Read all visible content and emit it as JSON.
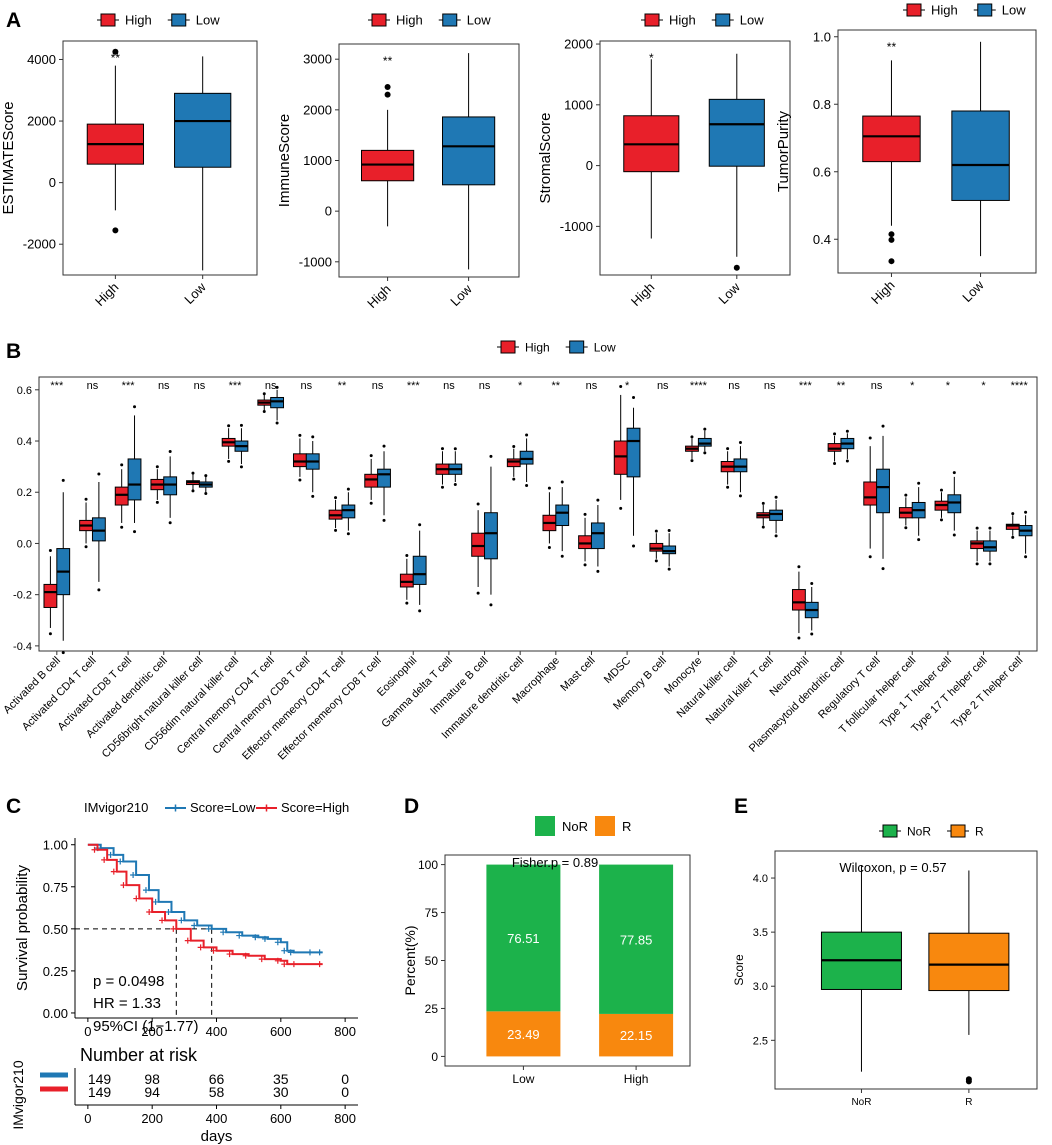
{
  "figure": {
    "panel_labels": [
      "A",
      "B",
      "C",
      "D",
      "E"
    ]
  },
  "colors": {
    "high": "#e8202a",
    "low": "#1f78b4",
    "nor": "#1cb24b",
    "r": "#f8880e",
    "line": "#000000"
  },
  "chart_data": [
    {
      "type": "box",
      "panel": "A1",
      "ylabel": "ESTIMATEScore",
      "legend": [
        "High",
        "Low"
      ],
      "categories": [
        "High",
        "Low"
      ],
      "significance": "**",
      "yticks": [
        -2000,
        0,
        2000,
        4000
      ],
      "ytick_labels": [
        "-2000",
        "0",
        "2000",
        "4000"
      ],
      "ylim": [
        -3000,
        4600
      ],
      "boxes": [
        {
          "name": "High",
          "whisker_low": -900,
          "q1": 600,
          "median": 1250,
          "q3": 1900,
          "whisker_high": 3800,
          "outliers": [
            4250,
            -1550
          ]
        },
        {
          "name": "Low",
          "whisker_low": -2850,
          "q1": 500,
          "median": 2000,
          "q3": 2900,
          "whisker_high": 4100,
          "outliers": []
        }
      ]
    },
    {
      "type": "box",
      "panel": "A2",
      "ylabel": "ImmuneScore",
      "legend": [
        "High",
        "Low"
      ],
      "categories": [
        "High",
        "Low"
      ],
      "significance": "**",
      "yticks": [
        -1000,
        0,
        1000,
        2000,
        3000
      ],
      "ytick_labels": [
        "-1000",
        "0",
        "1000",
        "2000",
        "3000"
      ],
      "ylim": [
        -1300,
        3300
      ],
      "boxes": [
        {
          "name": "High",
          "whisker_low": -300,
          "q1": 600,
          "median": 920,
          "q3": 1200,
          "whisker_high": 2000,
          "outliers": [
            2300,
            2450
          ]
        },
        {
          "name": "Low",
          "whisker_low": -1150,
          "q1": 520,
          "median": 1280,
          "q3": 1860,
          "whisker_high": 3120,
          "outliers": []
        }
      ]
    },
    {
      "type": "box",
      "panel": "A3",
      "ylabel": "StromalScore",
      "legend": [
        "High",
        "Low"
      ],
      "categories": [
        "High",
        "Low"
      ],
      "significance": "*",
      "yticks": [
        -1000,
        0,
        1000,
        2000
      ],
      "ytick_labels": [
        "-1000",
        "0",
        "1000",
        "2000"
      ],
      "ylim": [
        -1800,
        2050
      ],
      "boxes": [
        {
          "name": "High",
          "whisker_low": -1200,
          "q1": -100,
          "median": 350,
          "q3": 820,
          "whisker_high": 1750,
          "outliers": []
        },
        {
          "name": "Low",
          "whisker_low": -1500,
          "q1": -10,
          "median": 680,
          "q3": 1090,
          "whisker_high": 1840,
          "outliers": [
            -1680
          ]
        }
      ]
    },
    {
      "type": "box",
      "panel": "A4",
      "ylabel": "TumorPurity",
      "legend": [
        "High",
        "Low"
      ],
      "categories": [
        "High",
        "Low"
      ],
      "significance": "**",
      "yticks": [
        0.4,
        0.6,
        0.8,
        1.0
      ],
      "ytick_labels": [
        "0.4",
        "0.6",
        "0.8",
        "1.0"
      ],
      "ylim": [
        0.3,
        1.02
      ],
      "boxes": [
        {
          "name": "High",
          "whisker_low": 0.44,
          "q1": 0.63,
          "median": 0.705,
          "q3": 0.765,
          "whisker_high": 0.93,
          "outliers": [
            0.415,
            0.398,
            0.335
          ]
        },
        {
          "name": "Low",
          "whisker_low": 0.35,
          "q1": 0.515,
          "median": 0.62,
          "q3": 0.78,
          "whisker_high": 0.985,
          "outliers": []
        }
      ]
    },
    {
      "type": "box",
      "panel": "B",
      "legend": [
        "High",
        "Low"
      ],
      "yticks": [
        -0.4,
        -0.2,
        0.0,
        0.2,
        0.4,
        0.6
      ],
      "ytick_labels": [
        "-0.4",
        "-0.2",
        "0.0",
        "0.2",
        "0.4",
        "0.6"
      ],
      "ylim": [
        -0.42,
        0.65
      ],
      "categories": [
        "Activated B cell",
        "Activated CD4 T cell",
        "Activated CD8 T cell",
        "Activated dendritic cell",
        "CD56bright natural killer cell",
        "CD56dim natural killer cell",
        "Central memory CD4 T cell",
        "Central memory CD8 T cell",
        "Effector memeory CD4 T cell",
        "Effector memeory CD8 T cell",
        "Eosinophil",
        "Gamma delta T cell",
        "Immature  B cell",
        "Immature dendritic cell",
        "Macrophage",
        "Mast cell",
        "MDSC",
        "Memory B cell",
        "Monocyte",
        "Natural killer cell",
        "Natural killer T cell",
        "Neutrophil",
        "Plasmacytoid dendritic cell",
        "Regulatory T cell",
        "T follicular helper cell",
        "Type 1 T helper cell",
        "Type 17 T helper cell",
        "Type 2 T helper cell"
      ],
      "significance": [
        "***",
        "ns",
        "***",
        "ns",
        "ns",
        "***",
        "ns",
        "ns",
        "**",
        "ns",
        "***",
        "ns",
        "ns",
        "*",
        "**",
        "ns",
        "*",
        "ns",
        "****",
        "ns",
        "ns",
        "***",
        "**",
        "ns",
        "*",
        "*",
        "*",
        "****"
      ],
      "high": [
        [
          -0.33,
          -0.25,
          -0.19,
          -0.16,
          -0.05
        ],
        [
          0.0,
          0.05,
          0.07,
          0.09,
          0.16
        ],
        [
          0.08,
          0.15,
          0.19,
          0.22,
          0.29
        ],
        [
          0.17,
          0.21,
          0.23,
          0.25,
          0.29
        ],
        [
          0.21,
          0.23,
          0.24,
          0.245,
          0.27
        ],
        [
          0.33,
          0.38,
          0.395,
          0.41,
          0.45
        ],
        [
          0.52,
          0.54,
          0.55,
          0.56,
          0.58
        ],
        [
          0.26,
          0.3,
          0.32,
          0.35,
          0.41
        ],
        [
          0.06,
          0.095,
          0.11,
          0.13,
          0.17
        ],
        [
          0.17,
          0.22,
          0.25,
          0.27,
          0.33
        ],
        [
          -0.22,
          -0.17,
          -0.15,
          -0.12,
          -0.06
        ],
        [
          0.23,
          0.27,
          0.29,
          0.31,
          0.36
        ],
        [
          -0.17,
          -0.05,
          -0.01,
          0.04,
          0.13
        ],
        [
          0.26,
          0.3,
          0.32,
          0.33,
          0.37
        ],
        [
          0.0,
          0.05,
          0.08,
          0.11,
          0.2
        ],
        [
          -0.07,
          -0.02,
          0.0,
          0.03,
          0.1
        ],
        [
          0.17,
          0.27,
          0.34,
          0.4,
          0.58
        ],
        [
          -0.06,
          -0.03,
          -0.02,
          0.0,
          0.04
        ],
        [
          0.33,
          0.36,
          0.37,
          0.38,
          0.41
        ],
        [
          0.23,
          0.28,
          0.3,
          0.32,
          0.36
        ],
        [
          0.07,
          0.1,
          0.11,
          0.12,
          0.15
        ],
        [
          -0.35,
          -0.26,
          -0.23,
          -0.18,
          -0.11
        ],
        [
          0.32,
          0.36,
          0.37,
          0.39,
          0.42
        ],
        [
          -0.02,
          0.15,
          0.18,
          0.24,
          0.38
        ],
        [
          0.07,
          0.1,
          0.12,
          0.14,
          0.18
        ],
        [
          0.1,
          0.13,
          0.15,
          0.165,
          0.2
        ],
        [
          -0.07,
          -0.02,
          0.0,
          0.01,
          0.05
        ],
        [
          0.03,
          0.055,
          0.07,
          0.075,
          0.11
        ]
      ],
      "low": [
        [
          -0.38,
          -0.2,
          -0.11,
          -0.02,
          0.2
        ],
        [
          -0.15,
          0.01,
          0.05,
          0.1,
          0.24
        ],
        [
          0.08,
          0.17,
          0.23,
          0.33,
          0.5
        ],
        [
          0.1,
          0.19,
          0.23,
          0.26,
          0.34
        ],
        [
          0.2,
          0.22,
          0.23,
          0.24,
          0.26
        ],
        [
          0.31,
          0.36,
          0.38,
          0.4,
          0.45
        ],
        [
          0.48,
          0.53,
          0.555,
          0.57,
          0.6
        ],
        [
          0.2,
          0.29,
          0.32,
          0.35,
          0.4
        ],
        [
          0.05,
          0.1,
          0.13,
          0.15,
          0.2
        ],
        [
          0.11,
          0.22,
          0.27,
          0.29,
          0.36
        ],
        [
          -0.24,
          -0.16,
          -0.12,
          -0.05,
          0.05
        ],
        [
          0.24,
          0.27,
          0.29,
          0.31,
          0.36
        ],
        [
          -0.2,
          -0.06,
          0.04,
          0.12,
          0.3
        ],
        [
          0.24,
          0.31,
          0.33,
          0.36,
          0.41
        ],
        [
          -0.03,
          0.07,
          0.12,
          0.15,
          0.22
        ],
        [
          -0.09,
          -0.02,
          0.04,
          0.08,
          0.15
        ],
        [
          0.03,
          0.26,
          0.4,
          0.45,
          0.53
        ],
        [
          -0.09,
          -0.04,
          -0.03,
          -0.01,
          0.04
        ],
        [
          0.36,
          0.38,
          0.39,
          0.41,
          0.44
        ],
        [
          0.2,
          0.28,
          0.3,
          0.33,
          0.38
        ],
        [
          0.04,
          0.09,
          0.115,
          0.13,
          0.17
        ],
        [
          -0.34,
          -0.29,
          -0.26,
          -0.23,
          -0.17
        ],
        [
          0.33,
          0.37,
          0.39,
          0.41,
          0.43
        ],
        [
          -0.06,
          0.12,
          0.22,
          0.29,
          0.42
        ],
        [
          0.03,
          0.1,
          0.13,
          0.16,
          0.22
        ],
        [
          0.05,
          0.12,
          0.16,
          0.19,
          0.26
        ],
        [
          -0.07,
          -0.03,
          -0.015,
          0.01,
          0.05
        ],
        [
          -0.04,
          0.03,
          0.05,
          0.07,
          0.11
        ]
      ]
    },
    {
      "type": "line",
      "panel": "C",
      "title": "IMvigor210",
      "legend": [
        "Score=Low",
        "Score=High"
      ],
      "xlabel": "days",
      "ylabel": "Survival probability",
      "xticks": [
        0,
        200,
        400,
        600,
        800
      ],
      "yticks": [
        0.0,
        0.25,
        0.5,
        0.75,
        1.0
      ],
      "ytick_labels": [
        "0.00",
        "0.25",
        "0.50",
        "0.75",
        "1.00"
      ],
      "xlim": [
        -40,
        840
      ],
      "ylim": [
        -0.03,
        1.04
      ],
      "annotations": [
        "p = 0.0498",
        "HR = 1.33",
        "95%CI (1−1.77)"
      ],
      "median_survival": {
        "High": 275,
        "Low": 385
      },
      "series": [
        {
          "name": "Score=Low",
          "x": [
            0,
            40,
            80,
            110,
            150,
            190,
            220,
            260,
            300,
            340,
            385,
            430,
            480,
            530,
            560,
            600,
            620,
            640,
            700,
            730
          ],
          "y": [
            1.0,
            0.98,
            0.94,
            0.9,
            0.82,
            0.73,
            0.66,
            0.6,
            0.55,
            0.52,
            0.5,
            0.48,
            0.46,
            0.45,
            0.44,
            0.42,
            0.37,
            0.36,
            0.36,
            0.36
          ]
        },
        {
          "name": "Score=High",
          "x": [
            0,
            30,
            60,
            90,
            120,
            160,
            200,
            240,
            275,
            320,
            360,
            400,
            450,
            500,
            550,
            600,
            620,
            650,
            730
          ],
          "y": [
            1.0,
            0.97,
            0.91,
            0.84,
            0.76,
            0.68,
            0.6,
            0.55,
            0.5,
            0.43,
            0.39,
            0.37,
            0.35,
            0.34,
            0.32,
            0.31,
            0.29,
            0.29,
            0.29
          ]
        }
      ],
      "risk_table": {
        "title": "Number at risk",
        "group_label": "IMvigor210",
        "times": [
          0,
          200,
          400,
          600,
          800
        ],
        "rows": [
          {
            "name": "Score=Low",
            "counts": [
              "149",
              "98",
              "66",
              "35",
              "0"
            ]
          },
          {
            "name": "Score=High",
            "counts": [
              "149",
              "94",
              "58",
              "30",
              "0"
            ]
          }
        ]
      }
    },
    {
      "type": "bar",
      "panel": "D",
      "stacked": true,
      "legend": [
        "NoR",
        "R"
      ],
      "categories": [
        "Low",
        "High"
      ],
      "series": [
        {
          "name": "R",
          "values": [
            23.49,
            22.15
          ]
        },
        {
          "name": "NoR",
          "values": [
            76.51,
            77.85
          ]
        }
      ],
      "value_labels": {
        "NoR": [
          "76.51",
          "77.85"
        ],
        "R": [
          "23.49",
          "22.15"
        ]
      },
      "ylabel": "Percent(%)",
      "yticks": [
        0,
        25,
        50,
        75,
        100
      ],
      "ytick_labels": [
        "0",
        "25",
        "50",
        "75",
        "100"
      ],
      "ylim": [
        -5,
        105
      ],
      "annotation": "Fisher.p = 0.89"
    },
    {
      "type": "box",
      "panel": "E",
      "legend": [
        "NoR",
        "R"
      ],
      "categories": [
        "NoR",
        "R"
      ],
      "ylabel": "Score",
      "annotation": "Wilcoxon, p = 0.57",
      "yticks": [
        2.5,
        3.0,
        3.5,
        4.0
      ],
      "ytick_labels": [
        "2.5",
        "3.0",
        "3.5",
        "4.0"
      ],
      "ylim": [
        2.05,
        4.25
      ],
      "boxes": [
        {
          "name": "NoR",
          "whisker_low": 2.21,
          "q1": 2.97,
          "median": 3.24,
          "q3": 3.5,
          "whisker_high": 4.12,
          "outliers": []
        },
        {
          "name": "R",
          "whisker_low": 2.55,
          "q1": 2.96,
          "median": 3.2,
          "q3": 3.49,
          "whisker_high": 4.07,
          "outliers": [
            2.14,
            2.12
          ]
        }
      ]
    }
  ]
}
